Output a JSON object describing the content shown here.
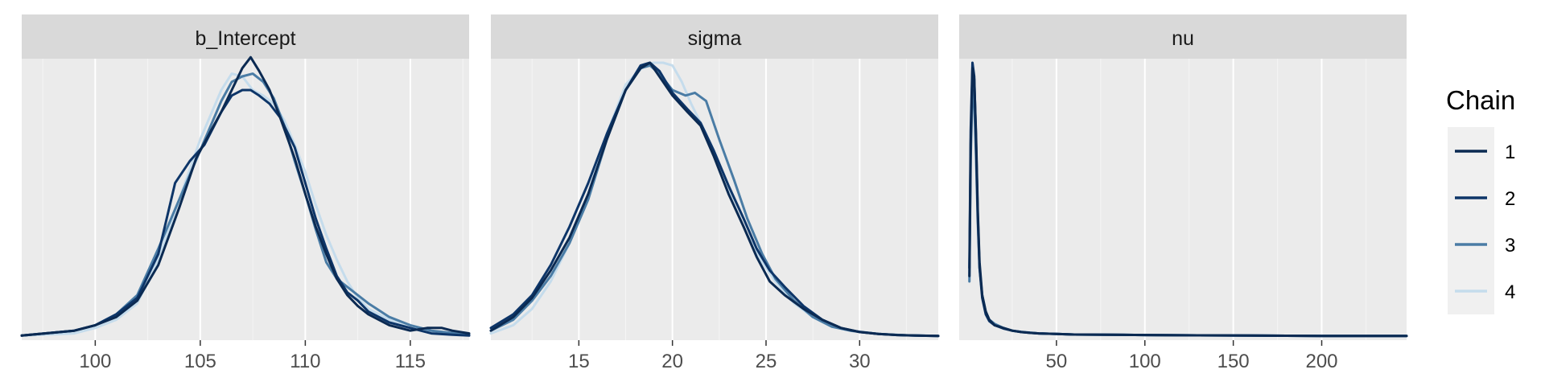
{
  "legend": {
    "title": "Chain",
    "entries": [
      {
        "label": "1",
        "color": "#0b2a52"
      },
      {
        "label": "2",
        "color": "#0d3568"
      },
      {
        "label": "3",
        "color": "#4a7ca5"
      },
      {
        "label": "4",
        "color": "#c5dcec"
      }
    ]
  },
  "chart_data": [
    {
      "type": "line",
      "title": "b_Intercept",
      "xlim": [
        96.5,
        117.8
      ],
      "x_ticks": [
        100,
        105,
        110,
        115
      ],
      "y_ticks_shown": false,
      "grid": true,
      "legend_placement": "right",
      "series": [
        {
          "name": "1",
          "x": [
            96.5,
            99,
            100,
            101,
            102,
            103,
            104,
            104.8,
            105.5,
            106,
            106.5,
            107,
            107.4,
            107.8,
            108.3,
            108.8,
            109.5,
            110,
            110.5,
            111,
            111.5,
            112,
            112.5,
            113,
            114,
            115,
            115.8,
            116.5,
            117,
            117.8
          ],
          "y": [
            0.002,
            0.02,
            0.04,
            0.07,
            0.13,
            0.26,
            0.47,
            0.65,
            0.75,
            0.82,
            0.9,
            0.98,
            1.02,
            0.97,
            0.9,
            0.8,
            0.65,
            0.52,
            0.4,
            0.3,
            0.21,
            0.15,
            0.11,
            0.08,
            0.04,
            0.02,
            0.03,
            0.03,
            0.02,
            0.01
          ]
        },
        {
          "name": "2",
          "x": [
            96.5,
            99,
            100,
            101,
            102,
            103,
            103.8,
            104.5,
            105.2,
            106,
            106.5,
            107,
            107.4,
            107.8,
            108.3,
            108.8,
            109.5,
            110,
            110.5,
            111,
            111.5,
            112,
            112.5,
            113,
            114,
            115,
            116,
            117,
            117.8
          ],
          "y": [
            0.002,
            0.02,
            0.04,
            0.08,
            0.14,
            0.3,
            0.56,
            0.64,
            0.7,
            0.82,
            0.88,
            0.9,
            0.9,
            0.88,
            0.85,
            0.8,
            0.69,
            0.56,
            0.43,
            0.32,
            0.22,
            0.16,
            0.13,
            0.09,
            0.05,
            0.03,
            0.01,
            0.005,
            0.002
          ]
        },
        {
          "name": "3",
          "x": [
            96.5,
            99,
            100,
            101,
            102,
            103,
            104,
            105,
            106,
            106.5,
            107,
            107.5,
            108,
            108.5,
            109,
            109.5,
            110,
            110.5,
            111,
            111.5,
            112,
            112.5,
            113,
            114,
            115,
            116,
            117.8
          ],
          "y": [
            0.002,
            0.02,
            0.04,
            0.08,
            0.15,
            0.32,
            0.5,
            0.68,
            0.86,
            0.93,
            0.95,
            0.96,
            0.93,
            0.87,
            0.77,
            0.64,
            0.52,
            0.39,
            0.27,
            0.21,
            0.18,
            0.15,
            0.12,
            0.07,
            0.04,
            0.02,
            0.005
          ]
        },
        {
          "name": "4",
          "x": [
            96.5,
            99,
            100,
            101,
            102,
            103,
            104,
            105,
            106,
            106.5,
            107,
            107.5,
            108,
            108.5,
            109,
            109.5,
            110,
            110.5,
            111,
            111.5,
            112,
            112.5,
            113,
            114,
            115,
            116,
            117.8
          ],
          "y": [
            0.002,
            0.01,
            0.03,
            0.06,
            0.12,
            0.28,
            0.5,
            0.72,
            0.9,
            0.96,
            0.95,
            0.9,
            0.88,
            0.85,
            0.79,
            0.7,
            0.6,
            0.48,
            0.37,
            0.28,
            0.2,
            0.14,
            0.1,
            0.06,
            0.03,
            0.015,
            0.005
          ]
        }
      ]
    },
    {
      "type": "line",
      "title": "sigma",
      "xlim": [
        10.3,
        34.2
      ],
      "x_ticks": [
        15,
        20,
        25,
        30
      ],
      "y_ticks_shown": false,
      "grid": true,
      "legend_placement": "right",
      "series": [
        {
          "name": "1",
          "x": [
            10.3,
            11.5,
            12.5,
            13.5,
            14.5,
            15.5,
            16.5,
            17.5,
            18.3,
            18.8,
            19.3,
            20,
            20.8,
            21.5,
            22.2,
            23,
            23.8,
            24.5,
            25.2,
            26,
            27,
            28,
            29,
            30,
            31,
            32,
            33,
            34.2
          ],
          "y": [
            0.02,
            0.07,
            0.14,
            0.24,
            0.36,
            0.52,
            0.72,
            0.9,
            0.98,
            1.0,
            0.95,
            0.88,
            0.82,
            0.77,
            0.66,
            0.52,
            0.4,
            0.29,
            0.2,
            0.15,
            0.1,
            0.06,
            0.03,
            0.015,
            0.008,
            0.004,
            0.002,
            0.001
          ]
        },
        {
          "name": "2",
          "x": [
            10.3,
            11.5,
            12.5,
            13.5,
            14.5,
            15.5,
            16.5,
            17.5,
            18.3,
            18.8,
            19.3,
            20,
            20.8,
            21.5,
            22.2,
            23,
            23.8,
            24.5,
            25.2,
            26,
            27,
            28,
            29,
            30,
            31,
            32,
            33,
            34.2
          ],
          "y": [
            0.03,
            0.08,
            0.15,
            0.26,
            0.4,
            0.56,
            0.74,
            0.9,
            0.99,
            1.0,
            0.97,
            0.89,
            0.83,
            0.78,
            0.68,
            0.55,
            0.43,
            0.32,
            0.24,
            0.18,
            0.11,
            0.06,
            0.03,
            0.015,
            0.008,
            0.004,
            0.002,
            0.001
          ]
        },
        {
          "name": "3",
          "x": [
            10.3,
            11.5,
            12.5,
            13.5,
            14.5,
            15.5,
            16.5,
            17.5,
            18.3,
            18.8,
            19.3,
            20,
            20.7,
            21.2,
            21.8,
            22.5,
            23.3,
            24,
            24.8,
            25.5,
            26.5,
            27.5,
            28.5,
            29.5,
            31,
            32.5,
            34.2
          ],
          "y": [
            0.02,
            0.06,
            0.13,
            0.22,
            0.34,
            0.5,
            0.72,
            0.9,
            0.98,
            0.99,
            0.96,
            0.9,
            0.88,
            0.89,
            0.86,
            0.72,
            0.57,
            0.43,
            0.3,
            0.21,
            0.13,
            0.07,
            0.035,
            0.02,
            0.008,
            0.003,
            0.001
          ]
        },
        {
          "name": "4",
          "x": [
            10.3,
            11.5,
            12.5,
            13.5,
            14.5,
            15.5,
            16.5,
            17.5,
            18.5,
            19,
            19.5,
            20,
            20.5,
            21,
            21.8,
            22.5,
            23.3,
            24,
            24.8,
            25.5,
            26.5,
            27.5,
            28.5,
            29.5,
            31,
            32.5,
            34.2
          ],
          "y": [
            0.01,
            0.04,
            0.1,
            0.2,
            0.34,
            0.52,
            0.74,
            0.92,
            0.99,
            1.0,
            1.0,
            0.99,
            0.93,
            0.85,
            0.74,
            0.61,
            0.48,
            0.37,
            0.27,
            0.2,
            0.12,
            0.07,
            0.035,
            0.02,
            0.008,
            0.003,
            0.001
          ]
        }
      ]
    },
    {
      "type": "line",
      "title": "nu",
      "xlim": [
        -5,
        248
      ],
      "x_ticks": [
        50,
        100,
        150,
        200
      ],
      "y_ticks_shown": false,
      "grid": true,
      "legend_placement": "right",
      "series": [
        {
          "name": "1",
          "x": [
            0.8,
            1.5,
            2.5,
            3.5,
            4.5,
            5.5,
            6.5,
            8,
            10,
            12,
            15,
            20,
            25,
            30,
            35,
            40,
            50,
            60,
            80,
            100,
            130,
            160,
            200,
            248
          ],
          "y": [
            0.22,
            0.7,
            0.98,
            0.94,
            0.74,
            0.46,
            0.27,
            0.15,
            0.09,
            0.06,
            0.04,
            0.03,
            0.02,
            0.015,
            0.012,
            0.01,
            0.008,
            0.006,
            0.005,
            0.004,
            0.003,
            0.002,
            0.001,
            0.001
          ]
        },
        {
          "name": "2",
          "x": [
            0.8,
            1.5,
            2.5,
            3.5,
            4.5,
            5.5,
            6.5,
            8,
            10,
            12,
            15,
            20,
            25,
            30,
            35,
            40,
            50,
            60,
            80,
            100,
            130,
            160,
            200,
            248
          ],
          "y": [
            0.25,
            0.75,
            1.0,
            0.95,
            0.72,
            0.44,
            0.25,
            0.14,
            0.08,
            0.055,
            0.04,
            0.028,
            0.02,
            0.015,
            0.012,
            0.01,
            0.008,
            0.006,
            0.005,
            0.004,
            0.003,
            0.002,
            0.001,
            0.001
          ]
        },
        {
          "name": "3",
          "x": [
            0.8,
            1.5,
            2.5,
            3.5,
            4.5,
            5.5,
            6.5,
            8,
            10,
            12,
            15,
            20,
            25,
            30,
            35,
            40,
            50,
            60,
            80,
            100,
            130,
            160,
            200,
            248
          ],
          "y": [
            0.2,
            0.65,
            0.9,
            0.86,
            0.66,
            0.42,
            0.25,
            0.15,
            0.09,
            0.06,
            0.045,
            0.03,
            0.02,
            0.016,
            0.013,
            0.01,
            0.008,
            0.006,
            0.005,
            0.004,
            0.003,
            0.002,
            0.001,
            0.001
          ]
        },
        {
          "name": "4",
          "x": [
            0.8,
            1.5,
            2.5,
            3.5,
            4.5,
            5.5,
            6.5,
            8,
            10,
            12,
            15,
            20,
            25,
            30,
            35,
            40,
            50,
            60,
            80,
            100,
            130,
            160,
            200,
            248
          ],
          "y": [
            0.22,
            0.68,
            0.92,
            0.88,
            0.68,
            0.43,
            0.26,
            0.15,
            0.09,
            0.06,
            0.045,
            0.03,
            0.02,
            0.016,
            0.013,
            0.01,
            0.008,
            0.006,
            0.005,
            0.004,
            0.003,
            0.002,
            0.001,
            0.001
          ]
        }
      ]
    }
  ]
}
